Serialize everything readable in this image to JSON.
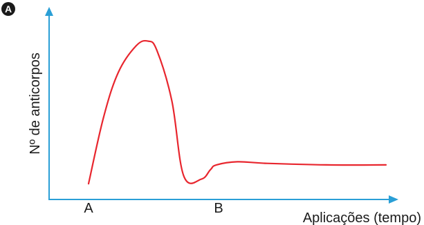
{
  "panel_label": "A",
  "chart_data": {
    "type": "line",
    "xlabel": "Aplicações (tempo)",
    "ylabel": "Nº de anticorpos",
    "x_markers": [
      "A",
      "B"
    ],
    "grid": false,
    "legend": "none",
    "axis_color": "#2a9fd6",
    "line_color": "#e8262e",
    "series": [
      {
        "values": [
          [
            0,
            0.03
          ],
          [
            0.05,
            0.45
          ],
          [
            0.1,
            0.74
          ],
          [
            0.16,
            0.91
          ],
          [
            0.2,
            0.94
          ],
          [
            0.23,
            0.88
          ],
          [
            0.28,
            0.56
          ],
          [
            0.32,
            0.08
          ],
          [
            0.38,
            0.06
          ],
          [
            0.41,
            0.12
          ],
          [
            0.43,
            0.15
          ],
          [
            0.5,
            0.17
          ],
          [
            0.6,
            0.16
          ],
          [
            0.8,
            0.15
          ],
          [
            1.0,
            0.15
          ]
        ]
      }
    ]
  }
}
